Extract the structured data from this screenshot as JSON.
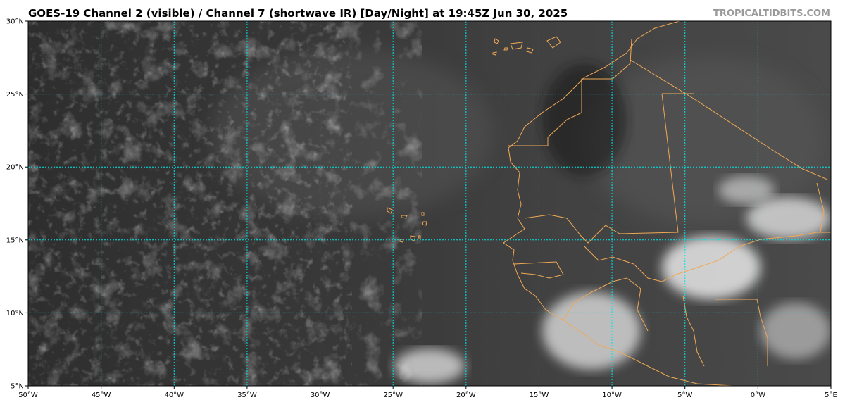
{
  "header": {
    "title": "GOES-19 Channel 2 (visible) / Channel 7 (shortwave IR) [Day/Night] at 19:45Z Jun 30, 2025",
    "credit": "TROPICALTIDBITS.COM"
  },
  "map": {
    "lon_range": [
      -50,
      5
    ],
    "lat_range": [
      5,
      30
    ],
    "gridline_color": "#00e5e5",
    "border_color": "#f0a955",
    "lon_ticks": [
      {
        "value": -50,
        "label": "50°W"
      },
      {
        "value": -45,
        "label": "45°W"
      },
      {
        "value": -40,
        "label": "40°W"
      },
      {
        "value": -35,
        "label": "35°W"
      },
      {
        "value": -30,
        "label": "30°W"
      },
      {
        "value": -25,
        "label": "25°W"
      },
      {
        "value": -20,
        "label": "20°W"
      },
      {
        "value": -15,
        "label": "15°W"
      },
      {
        "value": -10,
        "label": "10°W"
      },
      {
        "value": -5,
        "label": "5°W"
      },
      {
        "value": 0,
        "label": "0°W"
      },
      {
        "value": 5,
        "label": "5°E"
      }
    ],
    "lat_ticks": [
      {
        "value": 30,
        "label": "30°N"
      },
      {
        "value": 25,
        "label": "25°N"
      },
      {
        "value": 20,
        "label": "20°N"
      },
      {
        "value": 15,
        "label": "15°N"
      },
      {
        "value": 10,
        "label": "10°N"
      },
      {
        "value": 5,
        "label": "5°N"
      }
    ]
  }
}
